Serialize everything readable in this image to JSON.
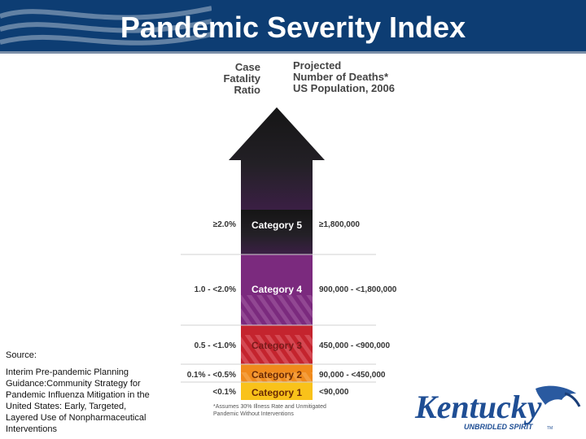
{
  "header": {
    "title": "Pandemic Severity Index"
  },
  "columns": {
    "left": "Case\nFatality\nRatio",
    "right": "Projected\nNumber of Deaths*\nUS Population, 2006"
  },
  "categories": [
    {
      "label": "Category 5",
      "ratio": "≥2.0%",
      "deaths": "≥1,800,000"
    },
    {
      "label": "Category 4",
      "ratio": "1.0 - <2.0%",
      "deaths": "900,000 - <1,800,000"
    },
    {
      "label": "Category 3",
      "ratio": "0.5 - <1.0%",
      "deaths": "450,000 - <900,000"
    },
    {
      "label": "Category 2",
      "ratio": "0.1% - <0.5%",
      "deaths": "90,000 - <450,000"
    },
    {
      "label": "Category 1",
      "ratio": "<0.1%",
      "deaths": "<90,000"
    }
  ],
  "footnote": "*Assumes 30% Illness Rate and Unmitigated Pandemic Without Interventions",
  "source": {
    "label": "Source:",
    "text": "Interim Pre-pandemic Planning Guidance:Community Strategy for Pandemic Influenza Mitigation in the United States: Early, Targeted, Layered Use of Nonpharmaceutical Interventions"
  },
  "logo": {
    "name": "Kentucky",
    "tagline": "UNBRIDLED SPIRIT",
    "mark": "TM"
  },
  "colors": {
    "header": "#0d3d73",
    "cat5": "#3b1f45",
    "cat4": "#7b2a7e",
    "cat3": "#c4242e",
    "cat2": "#f08a1c",
    "cat1": "#f9c21a"
  }
}
